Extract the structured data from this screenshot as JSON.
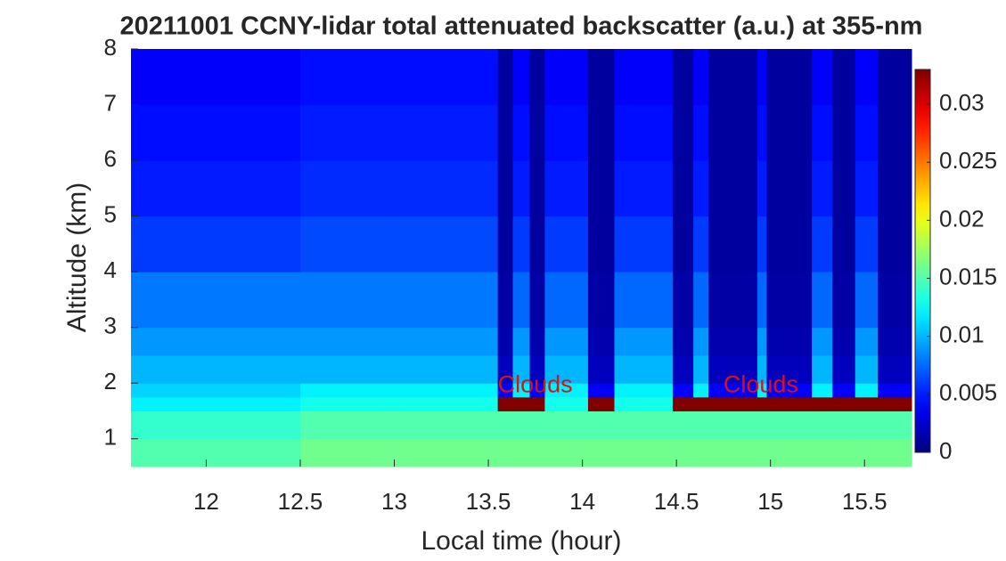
{
  "chart_data": {
    "type": "heatmap",
    "title": "20211001 CCNY-lidar total attenuated backscatter (a.u.) at 355-nm",
    "x_label": "Local time (hour)",
    "y_label": "Altitude (km)",
    "x": [
      11.6,
      11.8,
      12,
      12.25,
      12.5,
      12.75,
      13,
      13.25,
      13.55,
      13.63,
      13.72,
      13.8,
      14.03,
      14.17,
      14.48,
      14.59,
      14.67,
      14.93,
      14.98,
      15.22,
      15.33,
      15.45,
      15.57,
      15.75
    ],
    "y": [
      0.5,
      1,
      1.5,
      1.75,
      2,
      2.5,
      3,
      4,
      5,
      6,
      7,
      8
    ],
    "z": [
      [
        0.015,
        0.015,
        0.015,
        0.015,
        0.016,
        0.016,
        0.016,
        0.016,
        0.016,
        0.016,
        0.016,
        0.016,
        0.016,
        0.016,
        0.016,
        0.016,
        0.016,
        0.016,
        0.016,
        0.016,
        0.016,
        0.016,
        0.016
      ],
      [
        0.014,
        0.014,
        0.014,
        0.014,
        0.015,
        0.015,
        0.015,
        0.015,
        0.015,
        0.015,
        0.015,
        0.015,
        0.015,
        0.015,
        0.015,
        0.015,
        0.015,
        0.015,
        0.015,
        0.015,
        0.015,
        0.015,
        0.015
      ],
      [
        0.012,
        0.012,
        0.012,
        0.012,
        0.013,
        0.013,
        0.013,
        0.013,
        0.033,
        0.033,
        0.033,
        0.013,
        0.033,
        0.013,
        0.033,
        0.033,
        0.033,
        0.033,
        0.033,
        0.033,
        0.033,
        0.033,
        0.033
      ],
      [
        0.011,
        0.011,
        0.011,
        0.011,
        0.012,
        0.012,
        0.012,
        0.012,
        0.004,
        0.012,
        0.004,
        0.012,
        0.004,
        0.012,
        0.004,
        0.012,
        0.004,
        0.012,
        0.004,
        0.012,
        0.004,
        0.012,
        0.004
      ],
      [
        0.01,
        0.01,
        0.01,
        0.01,
        0.01,
        0.01,
        0.01,
        0.01,
        0.002,
        0.01,
        0.002,
        0.01,
        0.002,
        0.01,
        0.002,
        0.01,
        0.002,
        0.01,
        0.002,
        0.01,
        0.002,
        0.01,
        0.002
      ],
      [
        0.009,
        0.009,
        0.009,
        0.009,
        0.009,
        0.009,
        0.009,
        0.009,
        0.0015,
        0.009,
        0.0015,
        0.009,
        0.0015,
        0.009,
        0.0015,
        0.009,
        0.0015,
        0.009,
        0.0015,
        0.009,
        0.0015,
        0.009,
        0.0015
      ],
      [
        0.008,
        0.008,
        0.008,
        0.008,
        0.008,
        0.008,
        0.008,
        0.008,
        0.0012,
        0.0075,
        0.0012,
        0.0075,
        0.0012,
        0.0075,
        0.0012,
        0.0075,
        0.0012,
        0.0075,
        0.0012,
        0.0075,
        0.0012,
        0.0075,
        0.0012
      ],
      [
        0.006,
        0.006,
        0.006,
        0.006,
        0.0065,
        0.0065,
        0.0065,
        0.0065,
        0.001,
        0.006,
        0.001,
        0.006,
        0.001,
        0.006,
        0.001,
        0.006,
        0.001,
        0.006,
        0.001,
        0.006,
        0.001,
        0.006,
        0.001
      ],
      [
        0.005,
        0.005,
        0.005,
        0.005,
        0.0055,
        0.0055,
        0.0055,
        0.0055,
        0.001,
        0.005,
        0.001,
        0.005,
        0.001,
        0.005,
        0.001,
        0.005,
        0.001,
        0.005,
        0.001,
        0.005,
        0.001,
        0.005,
        0.001
      ],
      [
        0.0045,
        0.0045,
        0.0045,
        0.0045,
        0.005,
        0.005,
        0.005,
        0.005,
        0.001,
        0.0045,
        0.001,
        0.0045,
        0.001,
        0.0045,
        0.001,
        0.0045,
        0.001,
        0.0045,
        0.001,
        0.0045,
        0.001,
        0.0045,
        0.001
      ],
      [
        0.004,
        0.004,
        0.004,
        0.004,
        0.0045,
        0.0045,
        0.0045,
        0.0045,
        0.001,
        0.004,
        0.001,
        0.004,
        0.001,
        0.004,
        0.001,
        0.004,
        0.001,
        0.004,
        0.001,
        0.004,
        0.001,
        0.004,
        0.001
      ]
    ],
    "xlim": [
      11.6,
      15.75
    ],
    "ylim": [
      0.5,
      8
    ],
    "xticks": [
      12,
      12.5,
      13,
      13.5,
      14,
      14.5,
      15,
      15.5
    ],
    "yticks": [
      1,
      2,
      3,
      4,
      5,
      6,
      7,
      8
    ],
    "colormap": "jet",
    "clim": [
      0,
      0.033
    ],
    "cticks": [
      0,
      0.005,
      0.01,
      0.015,
      0.02,
      0.025,
      0.03
    ],
    "annotations": [
      "Clouds",
      "Clouds"
    ],
    "annotation_color": "#e01010"
  }
}
